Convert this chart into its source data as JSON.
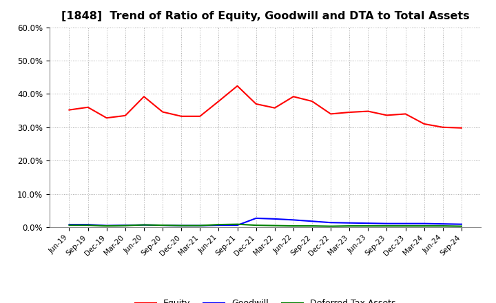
{
  "title": "[1848]  Trend of Ratio of Equity, Goodwill and DTA to Total Assets",
  "x_labels": [
    "Jun-19",
    "Sep-19",
    "Dec-19",
    "Mar-20",
    "Jun-20",
    "Sep-20",
    "Dec-20",
    "Mar-21",
    "Jun-21",
    "Sep-21",
    "Dec-21",
    "Mar-22",
    "Jun-22",
    "Sep-22",
    "Dec-22",
    "Mar-23",
    "Jun-23",
    "Sep-23",
    "Dec-23",
    "Mar-24",
    "Jun-24",
    "Sep-24"
  ],
  "equity": [
    0.352,
    0.36,
    0.328,
    0.335,
    0.392,
    0.346,
    0.333,
    0.333,
    0.378,
    0.424,
    0.37,
    0.358,
    0.392,
    0.378,
    0.34,
    0.345,
    0.348,
    0.336,
    0.34,
    0.31,
    0.3,
    0.298
  ],
  "goodwill": [
    0.008,
    0.008,
    0.005,
    0.006,
    0.007,
    0.006,
    0.005,
    0.005,
    0.006,
    0.006,
    0.027,
    0.025,
    0.022,
    0.018,
    0.014,
    0.013,
    0.012,
    0.011,
    0.011,
    0.011,
    0.01,
    0.009
  ],
  "dta": [
    0.006,
    0.006,
    0.004,
    0.005,
    0.007,
    0.006,
    0.005,
    0.005,
    0.008,
    0.009,
    0.006,
    0.005,
    0.004,
    0.004,
    0.003,
    0.004,
    0.004,
    0.004,
    0.004,
    0.004,
    0.004,
    0.003
  ],
  "equity_color": "#ff0000",
  "goodwill_color": "#0000ff",
  "dta_color": "#008000",
  "ylim": [
    0.0,
    0.6
  ],
  "yticks": [
    0.0,
    0.1,
    0.2,
    0.3,
    0.4,
    0.5,
    0.6
  ],
  "background_color": "#ffffff",
  "plot_bg_color": "#ffffff",
  "title_fontsize": 11.5,
  "legend_labels": [
    "Equity",
    "Goodwill",
    "Deferred Tax Assets"
  ]
}
